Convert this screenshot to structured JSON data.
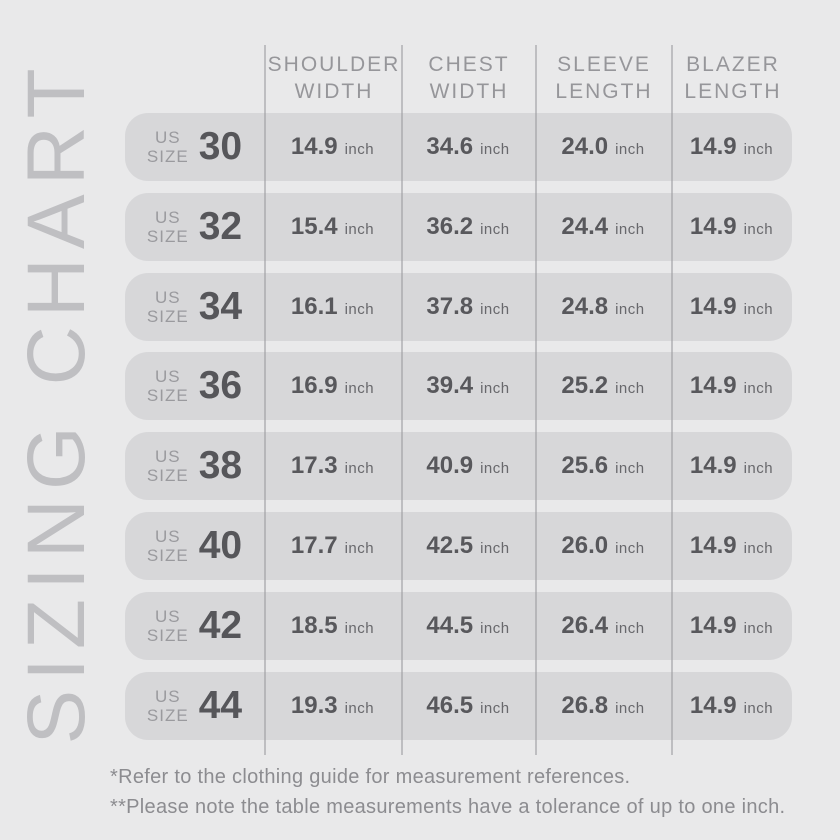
{
  "title": "SIZING CHART",
  "table": {
    "size_prefix": {
      "line1": "US",
      "line2": "SIZE"
    },
    "unit": "inch",
    "headers": [
      {
        "line1": "SHOULDER",
        "line2": "WIDTH"
      },
      {
        "line1": "CHEST",
        "line2": "WIDTH"
      },
      {
        "line1": "SLEEVE",
        "line2": "LENGTH"
      },
      {
        "line1": "BLAZER",
        "line2": "LENGTH"
      }
    ],
    "rows": [
      {
        "size": "30",
        "shoulder": "14.9",
        "chest": "34.6",
        "sleeve": "24.0",
        "blazer": "14.9"
      },
      {
        "size": "32",
        "shoulder": "15.4",
        "chest": "36.2",
        "sleeve": "24.4",
        "blazer": "14.9"
      },
      {
        "size": "34",
        "shoulder": "16.1",
        "chest": "37.8",
        "sleeve": "24.8",
        "blazer": "14.9"
      },
      {
        "size": "36",
        "shoulder": "16.9",
        "chest": "39.4",
        "sleeve": "25.2",
        "blazer": "14.9"
      },
      {
        "size": "38",
        "shoulder": "17.3",
        "chest": "40.9",
        "sleeve": "25.6",
        "blazer": "14.9"
      },
      {
        "size": "40",
        "shoulder": "17.7",
        "chest": "42.5",
        "sleeve": "26.0",
        "blazer": "14.9"
      },
      {
        "size": "42",
        "shoulder": "18.5",
        "chest": "44.5",
        "sleeve": "26.4",
        "blazer": "14.9"
      },
      {
        "size": "44",
        "shoulder": "19.3",
        "chest": "46.5",
        "sleeve": "26.8",
        "blazer": "14.9"
      }
    ]
  },
  "footnotes": [
    "*Refer to the clothing guide for measurement references.",
    "**Please note the table measurements have a tolerance of up to one inch."
  ],
  "colors": {
    "background": "#e9e9ea",
    "row_pill": "#d7d7d9",
    "divider": "#9a9a9e",
    "title": "#bfbfc2",
    "header_text": "#96969a",
    "value_text": "#58585c",
    "muted_text": "#9a9a9e",
    "footnote_text": "#8c8c90"
  },
  "chart_data": {
    "type": "table",
    "title": "SIZING CHART",
    "unit": "inch",
    "columns": [
      "US SIZE",
      "SHOULDER WIDTH",
      "CHEST WIDTH",
      "SLEEVE LENGTH",
      "BLAZER LENGTH"
    ],
    "rows": [
      [
        30,
        14.9,
        34.6,
        24.0,
        14.9
      ],
      [
        32,
        15.4,
        36.2,
        24.4,
        14.9
      ],
      [
        34,
        16.1,
        37.8,
        24.8,
        14.9
      ],
      [
        36,
        16.9,
        39.4,
        25.2,
        14.9
      ],
      [
        38,
        17.3,
        40.9,
        25.6,
        14.9
      ],
      [
        40,
        17.7,
        42.5,
        26.0,
        14.9
      ],
      [
        42,
        18.5,
        44.5,
        26.4,
        14.9
      ],
      [
        44,
        19.3,
        46.5,
        26.8,
        14.9
      ]
    ],
    "footnotes": [
      "*Refer to the clothing guide for measurement references.",
      "**Please note the table measurements have a tolerance of up to one inch."
    ],
    "layout": {
      "grid": "vertical column dividers only",
      "row_style": "rounded gray pills"
    }
  }
}
